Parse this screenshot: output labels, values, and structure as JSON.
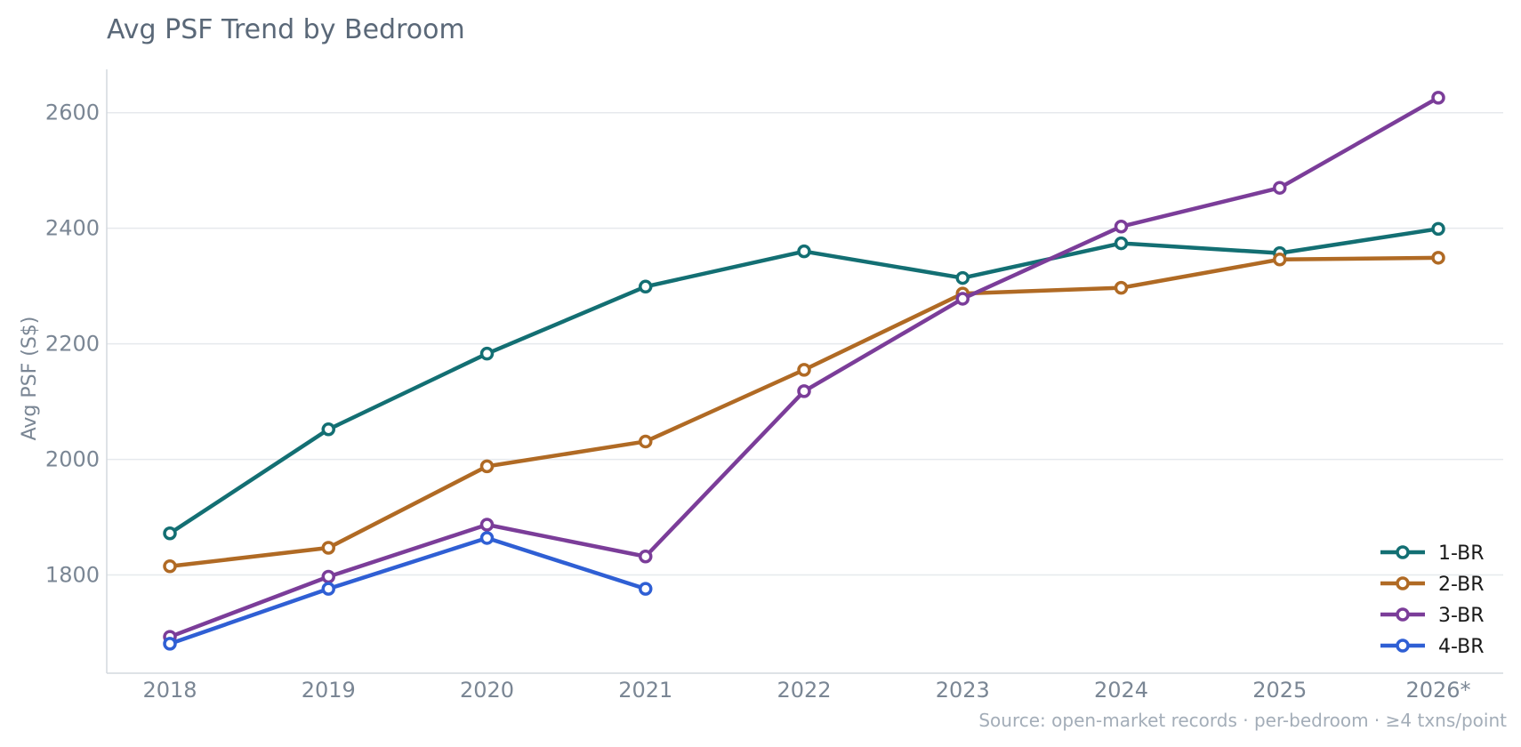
{
  "chart_data": {
    "type": "line",
    "title": "Avg PSF Trend by Bedroom",
    "xlabel": "",
    "ylabel": "Avg PSF (S$)",
    "categories": [
      "2018",
      "2019",
      "2020",
      "2021",
      "2022",
      "2023",
      "2024",
      "2025",
      "2026*"
    ],
    "y_ticks": [
      1800,
      2000,
      2200,
      2400,
      2600
    ],
    "ylim": [
      1630,
      2675
    ],
    "grid": "horizontal",
    "legend_position": "bottom-right",
    "series": [
      {
        "name": "1-BR",
        "color": "#136f73",
        "values": [
          1872,
          2052,
          2183,
          2299,
          2360,
          2314,
          2374,
          2357,
          2399
        ]
      },
      {
        "name": "2-BR",
        "color": "#b06a24",
        "values": [
          1815,
          1847,
          1988,
          2031,
          2155,
          2287,
          2297,
          2346,
          2349
        ]
      },
      {
        "name": "3-BR",
        "color": "#7b3d99",
        "values": [
          1693,
          1797,
          1887,
          1832,
          2118,
          2278,
          2403,
          2470,
          2626
        ]
      },
      {
        "name": "4-BR",
        "color": "#2f5fd4",
        "values": [
          1681,
          1776,
          1864,
          1776,
          null,
          null,
          null,
          null,
          null
        ]
      }
    ],
    "source_note": "Source: open-market records · per-bedroom · ≥4 txns/point"
  }
}
